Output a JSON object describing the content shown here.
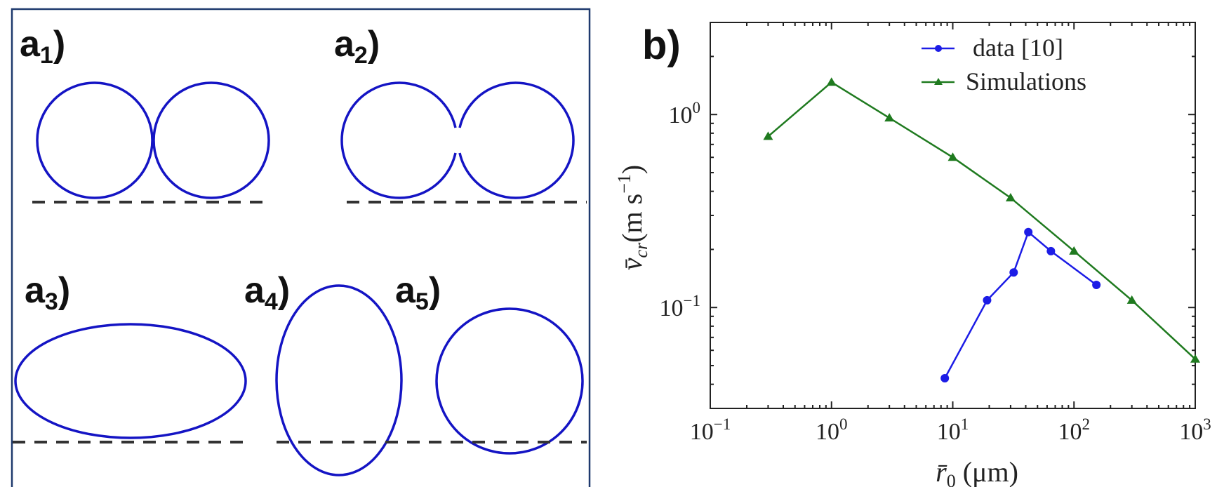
{
  "colors": {
    "shape": "#1414c4",
    "frame": "#1f3a6e",
    "data_series": "#1c1ce6",
    "sim_series": "#1f7a1f"
  },
  "panel_a": {
    "labels": [
      {
        "base": "a",
        "sub": "1",
        "suffix": ")"
      },
      {
        "base": "a",
        "sub": "2",
        "suffix": ")"
      },
      {
        "base": "a",
        "sub": "3",
        "suffix": ")"
      },
      {
        "base": "a",
        "sub": "4",
        "suffix": ")"
      },
      {
        "base": "a",
        "sub": "5",
        "suffix": ")"
      }
    ]
  },
  "panel_b": {
    "label": "b)"
  },
  "chart_data": {
    "type": "line",
    "x_scale": "log",
    "y_scale": "log",
    "xlim": [
      0.1,
      1000
    ],
    "ylim": [
      0.03,
      3
    ],
    "grid": false,
    "legend_position": "top-center",
    "xlabel": {
      "main": "r̄",
      "sub": "0",
      "rest": " (μm)"
    },
    "ylabel": {
      "main": "v̄",
      "sub": "cr",
      "rest": "(m s",
      "sup": "−1",
      "close": ")"
    },
    "x_ticks": [
      {
        "value": 0.1,
        "base": "10",
        "exp": "−1"
      },
      {
        "value": 1,
        "base": "10",
        "exp": "0"
      },
      {
        "value": 10,
        "base": "10",
        "exp": "1"
      },
      {
        "value": 100,
        "base": "10",
        "exp": "2"
      },
      {
        "value": 1000,
        "base": "10",
        "exp": "3"
      }
    ],
    "y_ticks": [
      {
        "value": 1,
        "base": "10",
        "exp": "0"
      },
      {
        "value": 0.1,
        "base": "10",
        "exp": "−1"
      }
    ],
    "series": [
      {
        "name": "data [10]",
        "marker": "circle",
        "color": "#1c1ce6",
        "x": [
          8.6,
          19.2,
          31.8,
          42,
          64.5,
          153
        ],
        "y": [
          0.043,
          0.109,
          0.152,
          0.246,
          0.196,
          0.131
        ]
      },
      {
        "name": "Simulations",
        "marker": "triangle",
        "color": "#1f7a1f",
        "x": [
          0.3,
          1,
          3,
          10,
          30,
          100,
          300,
          1000
        ],
        "y": [
          0.77,
          1.47,
          0.96,
          0.6,
          0.37,
          0.196,
          0.109,
          0.054
        ]
      }
    ]
  }
}
